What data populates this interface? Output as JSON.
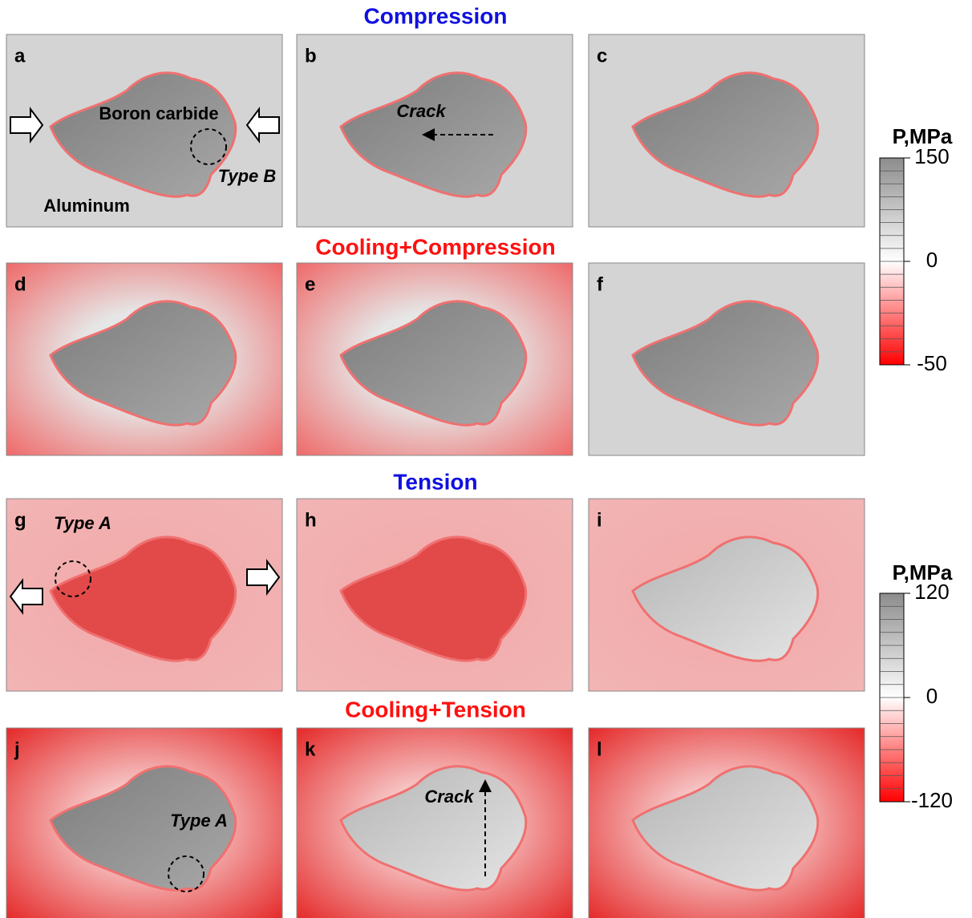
{
  "sections": [
    "Compression",
    "Cooling+Compression",
    "Tension",
    "Cooling+Tension"
  ],
  "panels": [
    {
      "label": "a",
      "annotations": [
        "Boron carbide",
        "Type B",
        "Aluminum"
      ]
    },
    {
      "label": "b",
      "annotations": [
        "Crack"
      ]
    },
    {
      "label": "c"
    },
    {
      "label": "d"
    },
    {
      "label": "e"
    },
    {
      "label": "f"
    },
    {
      "label": "g",
      "annotations": [
        "Type A"
      ]
    },
    {
      "label": "h"
    },
    {
      "label": "i"
    },
    {
      "label": "j",
      "annotations": [
        "Type A"
      ]
    },
    {
      "label": "k",
      "annotations": [
        "Crack"
      ]
    },
    {
      "label": "l"
    }
  ],
  "colorbars": [
    {
      "title": "P,MPa",
      "lim": [
        -50,
        150
      ],
      "ticks": [
        150,
        0,
        -50
      ]
    },
    {
      "title": "P,MPa",
      "lim": [
        -120,
        120
      ],
      "ticks": [
        120,
        0,
        -120
      ]
    }
  ]
}
